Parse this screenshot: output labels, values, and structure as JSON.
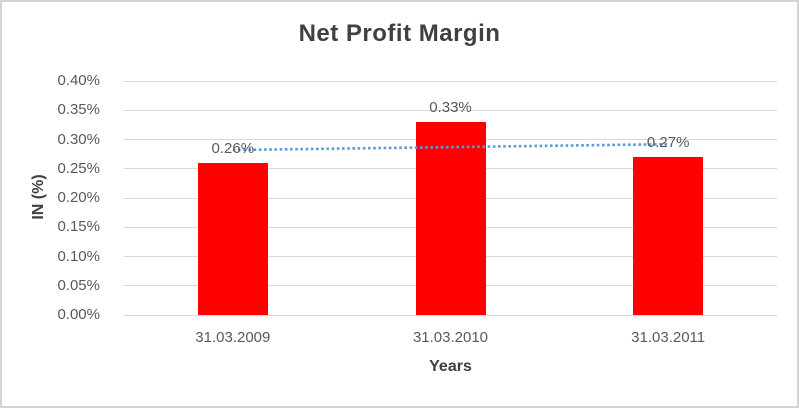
{
  "chart_data": {
    "type": "bar",
    "title": "Net Profit Margin",
    "xlabel": "Years",
    "ylabel": "IN (%)",
    "categories": [
      "31.03.2009",
      "31.03.2010",
      "31.03.2011"
    ],
    "values": [
      0.26,
      0.33,
      0.27
    ],
    "data_labels": [
      "0.26%",
      "0.33%",
      "0.27%"
    ],
    "ylim": [
      0.0,
      0.4
    ],
    "ytick_step": 0.05,
    "ytick_labels": [
      "0.00%",
      "0.05%",
      "0.10%",
      "0.15%",
      "0.20%",
      "0.25%",
      "0.30%",
      "0.35%",
      "0.40%"
    ],
    "grid": true,
    "legend": "none",
    "bar_color": "#ff0000",
    "background_color": "#ffffff",
    "gridline_color": "#d9d9d9",
    "title_color": "#404040",
    "tick_label_color": "#595959",
    "trendline": {
      "type": "linear",
      "style": "dotted",
      "color": "#5b9bd5",
      "start_value": 0.282,
      "end_value": 0.292
    }
  }
}
